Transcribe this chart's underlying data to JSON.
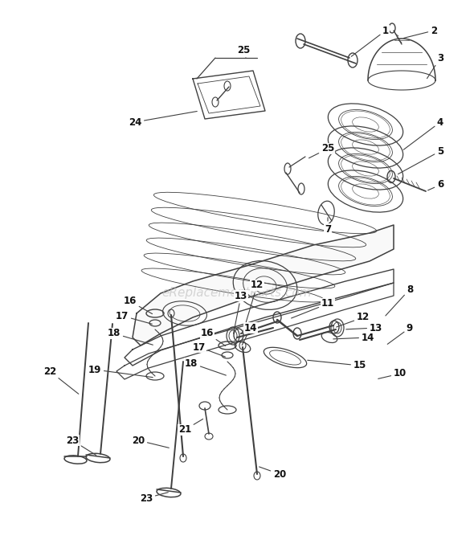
{
  "bg_color": "#ffffff",
  "line_color": "#404040",
  "label_color": "#111111",
  "watermark": "eReplacementParts.com",
  "figsize": [
    5.9,
    6.82
  ],
  "dpi": 100,
  "fig_w": 590,
  "fig_h": 682
}
